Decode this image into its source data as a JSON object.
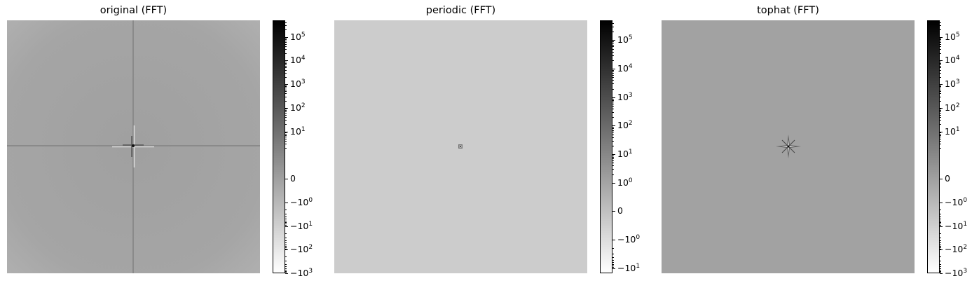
{
  "chart_data": [
    {
      "type": "heatmap",
      "title": "original (FFT)",
      "image": {
        "background": "#a2a2a2",
        "description_class": "fft-cross",
        "colormap": "gray_r"
      },
      "colorbar": {
        "scale": "symlog",
        "ticks": [
          {
            "label": "10",
            "exp": "5",
            "value": 100000
          },
          {
            "label": "10",
            "exp": "4",
            "value": 10000
          },
          {
            "label": "10",
            "exp": "3",
            "value": 1000
          },
          {
            "label": "10",
            "exp": "2",
            "value": 100
          },
          {
            "label": "10",
            "exp": "1",
            "value": 10
          },
          {
            "label": "0",
            "exp": "",
            "value": 0
          },
          {
            "label": "−10",
            "exp": "0",
            "value": -1
          },
          {
            "label": "−10",
            "exp": "1",
            "value": -10
          },
          {
            "label": "−10",
            "exp": "2",
            "value": -100
          },
          {
            "label": "−10",
            "exp": "3",
            "value": -1000
          }
        ],
        "range": [
          -1000,
          500000
        ]
      }
    },
    {
      "type": "heatmap",
      "title": "periodic (FFT)",
      "image": {
        "background": "#cccccc",
        "description_class": "fft-dot",
        "colormap": "gray_r"
      },
      "colorbar": {
        "scale": "symlog",
        "ticks": [
          {
            "label": "10",
            "exp": "5",
            "value": 100000
          },
          {
            "label": "10",
            "exp": "4",
            "value": 10000
          },
          {
            "label": "10",
            "exp": "3",
            "value": 1000
          },
          {
            "label": "10",
            "exp": "2",
            "value": 100
          },
          {
            "label": "10",
            "exp": "1",
            "value": 10
          },
          {
            "label": "10",
            "exp": "0",
            "value": 1
          },
          {
            "label": "0",
            "exp": "",
            "value": 0
          },
          {
            "label": "−10",
            "exp": "0",
            "value": -1
          },
          {
            "label": "−10",
            "exp": "1",
            "value": -10
          }
        ],
        "range": [
          -15,
          500000
        ]
      }
    },
    {
      "type": "heatmap",
      "title": "tophat (FFT)",
      "image": {
        "background": "#a2a2a2",
        "description_class": "fft-star",
        "colormap": "gray_r"
      },
      "colorbar": {
        "scale": "symlog",
        "ticks": [
          {
            "label": "10",
            "exp": "5",
            "value": 100000
          },
          {
            "label": "10",
            "exp": "4",
            "value": 10000
          },
          {
            "label": "10",
            "exp": "3",
            "value": 1000
          },
          {
            "label": "10",
            "exp": "2",
            "value": 100
          },
          {
            "label": "10",
            "exp": "1",
            "value": 10
          },
          {
            "label": "0",
            "exp": "",
            "value": 0
          },
          {
            "label": "−10",
            "exp": "0",
            "value": -1
          },
          {
            "label": "−10",
            "exp": "1",
            "value": -10
          },
          {
            "label": "−10",
            "exp": "2",
            "value": -100
          },
          {
            "label": "−10",
            "exp": "3",
            "value": -1000
          }
        ],
        "range": [
          -1000,
          500000
        ]
      }
    }
  ]
}
